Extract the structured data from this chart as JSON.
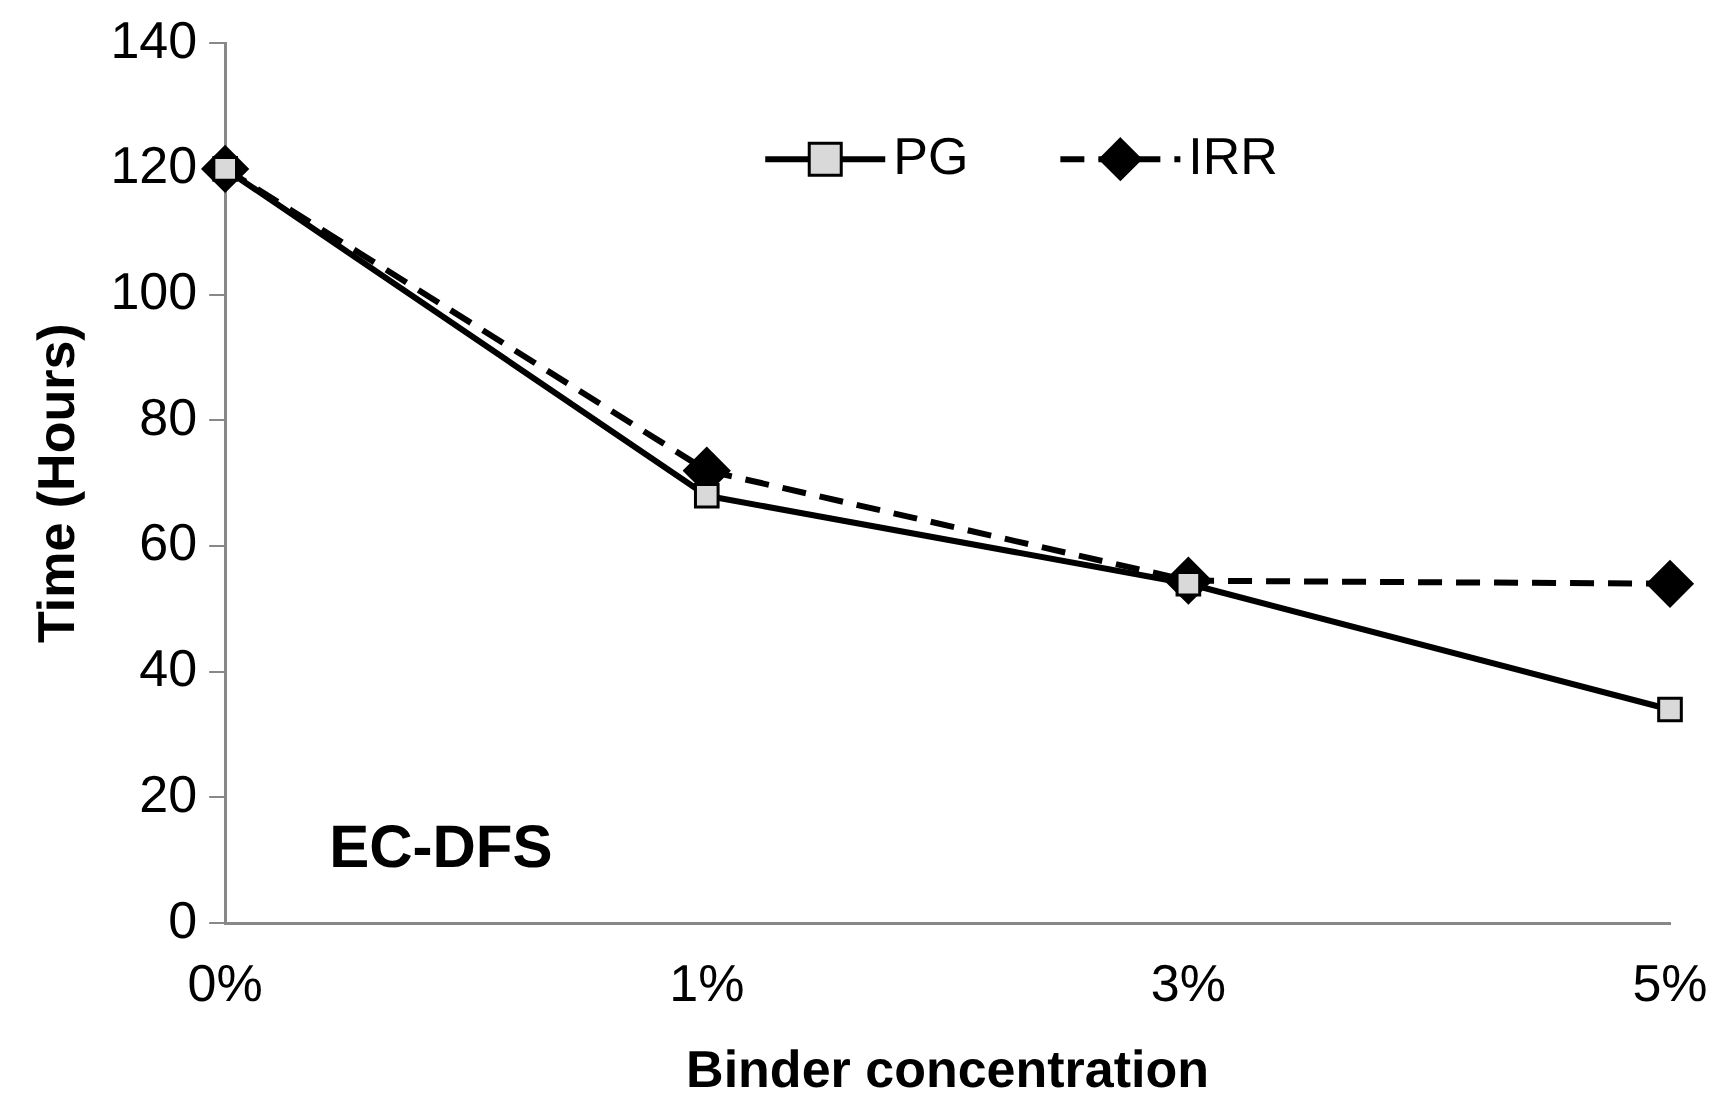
{
  "chart_data": {
    "type": "line",
    "xlabel": "Binder concentration",
    "ylabel": "Time (Hours)",
    "categories": [
      "0%",
      "1%",
      "3%",
      "5%"
    ],
    "series": [
      {
        "name": "PG",
        "color": "#000000",
        "values": [
          120,
          68,
          54,
          34
        ],
        "marker": "square",
        "line_style": "solid"
      },
      {
        "name": "IRR",
        "color": "#000000",
        "values": [
          120,
          72,
          54.5,
          54
        ],
        "marker": "diamond",
        "line_style": "dashed"
      }
    ],
    "ylim": [
      0,
      140
    ],
    "yticks": [
      0,
      20,
      40,
      60,
      80,
      100,
      120,
      140
    ],
    "grid": false,
    "legend": "top",
    "annotations": [
      "EC-DFS"
    ]
  }
}
